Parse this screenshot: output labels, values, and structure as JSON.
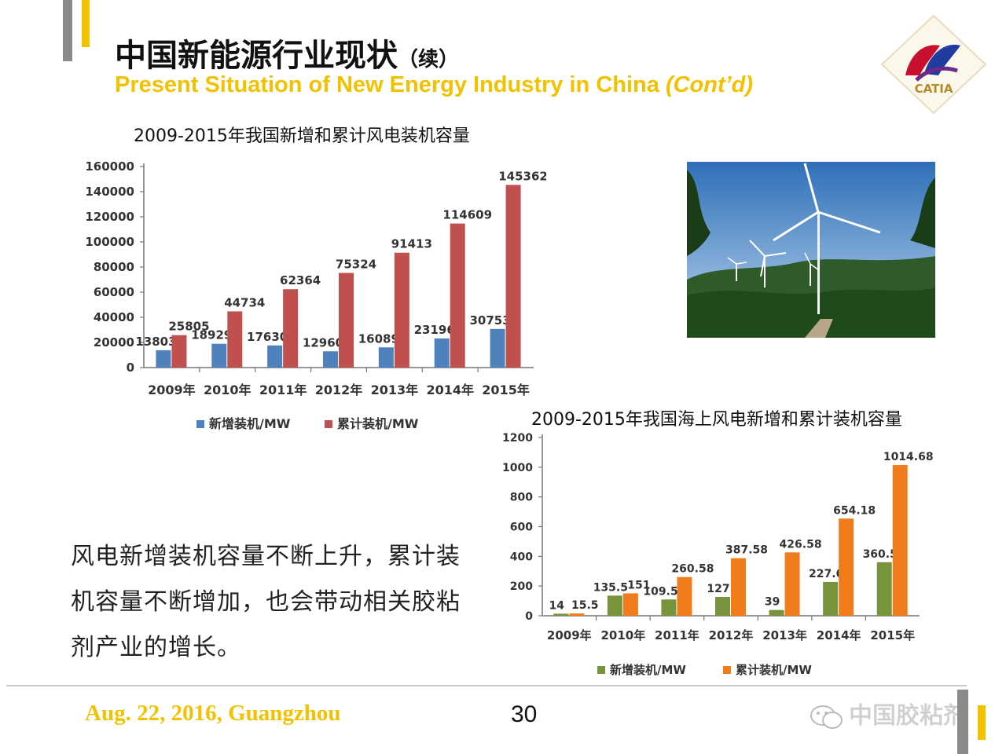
{
  "header": {
    "title_cn": "中国新能源行业现状",
    "title_cn_suffix": "（续）",
    "title_en": "Present Situation of New Energy Industry in China",
    "title_en_suffix": "(Cont’d)",
    "logo_text": "CATIA"
  },
  "colors": {
    "accent_yellow": "#f2c200",
    "blue": "#4f81bd",
    "red": "#c0504d",
    "green": "#77933c",
    "orange": "#f07c1c"
  },
  "chart_data": [
    {
      "type": "bar",
      "title": "2009-2015年我国新增和累计风电装机容量",
      "categories": [
        "2009年",
        "2010年",
        "2011年",
        "2012年",
        "2013年",
        "2014年",
        "2015年"
      ],
      "series": [
        {
          "name": "新增装机/MW",
          "values": [
            13803,
            18929,
            17630,
            12960,
            16089,
            23196,
            30753
          ]
        },
        {
          "name": "累计装机/MW",
          "values": [
            25805,
            44734,
            62364,
            75324,
            91413,
            114609,
            145362
          ]
        }
      ],
      "yticks": [
        "0",
        "20000",
        "40000",
        "60000",
        "80000",
        "100000",
        "120000",
        "140000",
        "160000"
      ],
      "ylim": [
        0,
        160000
      ],
      "legend": "bottom"
    },
    {
      "type": "bar",
      "title": "2009-2015年我国海上风电新增和累计装机容量",
      "categories": [
        "2009年",
        "2010年",
        "2011年",
        "2012年",
        "2013年",
        "2014年",
        "2015年"
      ],
      "series": [
        {
          "name": "新增装机/MW",
          "values": [
            14,
            135.5,
            109.58,
            127,
            39,
            227.6,
            360.5
          ]
        },
        {
          "name": "累计装机/MW",
          "values": [
            15.5,
            151,
            260.58,
            387.58,
            426.58,
            654.18,
            1014.68
          ]
        }
      ],
      "yticks": [
        "0",
        "200",
        "400",
        "600",
        "800",
        "1000",
        "1200"
      ],
      "ylim": [
        0,
        1200
      ],
      "legend": "bottom"
    }
  ],
  "body": {
    "paragraph": "风电新增装机容量不断上升，累计装机容量不断增加，也会带动相关胶粘剂产业的增长。"
  },
  "footer": {
    "date_location": "Aug. 22, 2016, Guangzhou",
    "page_number": "30",
    "wechat_name": "中国胶粘剂"
  }
}
